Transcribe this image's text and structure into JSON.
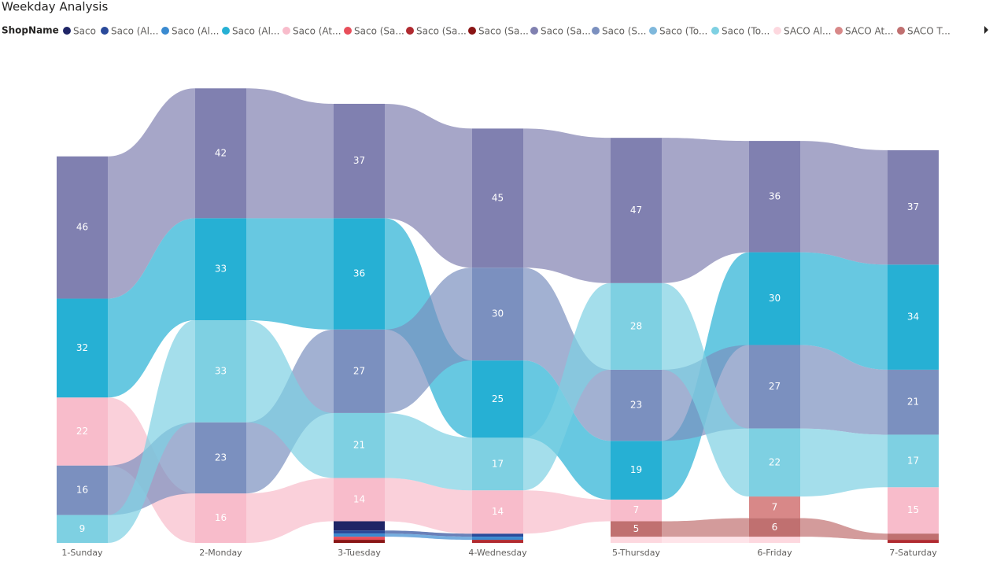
{
  "chart_data": {
    "type": "ribbon",
    "title": "Weekday Analysis",
    "legend_title": "ShopName",
    "categories": [
      "1-Sunday",
      "2-Monday",
      "3-Tuesday",
      "4-Wednesday",
      "5-Thursday",
      "6-Friday",
      "7-Saturday"
    ],
    "series": [
      {
        "name": "Saco",
        "color": "#1f2566",
        "values": [
          0,
          0,
          3,
          0,
          0,
          0,
          0
        ]
      },
      {
        "name": "Saco (Al...",
        "color": "#2a4a9a",
        "values": [
          0,
          0,
          1,
          1,
          0,
          0,
          0
        ]
      },
      {
        "name": "Saco (Al...",
        "color": "#3a8ad0",
        "values": [
          0,
          0,
          1,
          1,
          0,
          0,
          0
        ]
      },
      {
        "name": "Saco (Al...",
        "color": "#26b0d4",
        "values": [
          32,
          33,
          36,
          25,
          19,
          30,
          34
        ]
      },
      {
        "name": "Saco (At...",
        "color": "#f8bccb",
        "values": [
          22,
          16,
          14,
          14,
          7,
          0,
          15
        ]
      },
      {
        "name": "Saco (Sa...",
        "color": "#e84e5a",
        "values": [
          0,
          0,
          1,
          0,
          0,
          0,
          0
        ]
      },
      {
        "name": "Saco (Sa...",
        "color": "#b02a30",
        "values": [
          0,
          0,
          0,
          1,
          0,
          0,
          1
        ]
      },
      {
        "name": "Saco (Sa...",
        "color": "#8a1515",
        "values": [
          0,
          0,
          1,
          0,
          0,
          0,
          0
        ]
      },
      {
        "name": "Saco (Sa...",
        "color": "#8080b0",
        "values": [
          46,
          42,
          37,
          45,
          47,
          36,
          37
        ]
      },
      {
        "name": "Saco (S...",
        "color": "#7b90bf",
        "values": [
          16,
          23,
          27,
          30,
          23,
          27,
          21
        ]
      },
      {
        "name": "Saco (To...",
        "color": "#7fb8dc",
        "values": [
          0,
          0,
          0,
          0,
          0,
          0,
          0
        ]
      },
      {
        "name": "Saco (To...",
        "color": "#7ed0e2",
        "values": [
          9,
          33,
          21,
          17,
          28,
          22,
          17
        ]
      },
      {
        "name": "SACO Al...",
        "color": "#fdd8df",
        "values": [
          0,
          0,
          0,
          0,
          2,
          2,
          0
        ]
      },
      {
        "name": "SACO At...",
        "color": "#d88888",
        "values": [
          0,
          0,
          0,
          0,
          0,
          7,
          0
        ]
      },
      {
        "name": "SACO T...",
        "color": "#c07070",
        "values": [
          0,
          0,
          0,
          0,
          5,
          6,
          2
        ]
      }
    ]
  }
}
